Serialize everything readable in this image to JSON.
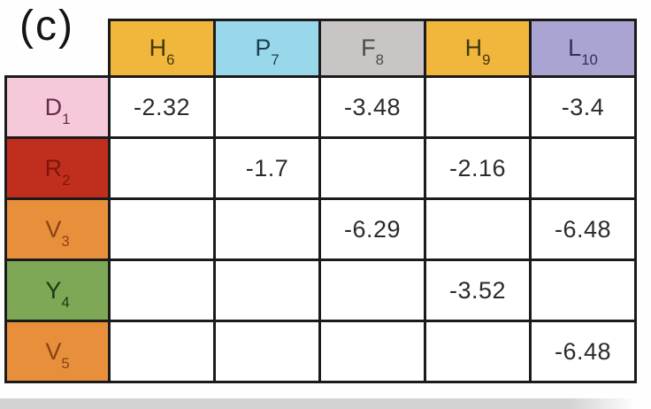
{
  "panel_label": "(c)",
  "palette": {
    "grid_border": "#1b1b1b",
    "value_text": "#2b2b2b",
    "gold": "#F1B73C",
    "gold_text": "#44380f",
    "cyan": "#98D8EA",
    "cyan_text": "#1d3d50",
    "gray": "#C9C5C5",
    "gray_text": "#4d4949",
    "lavender": "#A9A4D2",
    "lavender_text": "#322e5e",
    "pink": "#F5C9DA",
    "pink_text": "#69294b",
    "red": "#C02F1E",
    "red_text": "#801509",
    "orange": "#E88F3C",
    "orange_text": "#8a4313",
    "green": "#7EA855",
    "green_text": "#21380f"
  },
  "matrix": {
    "col_headers": [
      {
        "main": "H",
        "sub": "6"
      },
      {
        "main": "P",
        "sub": "7"
      },
      {
        "main": "F",
        "sub": "8"
      },
      {
        "main": "H",
        "sub": "9"
      },
      {
        "main": "L",
        "sub": "10"
      }
    ],
    "rows": [
      {
        "label": {
          "main": "D",
          "sub": "1"
        },
        "values": [
          "-2.32",
          "",
          "-3.48",
          "",
          "-3.4"
        ]
      },
      {
        "label": {
          "main": "R",
          "sub": "2"
        },
        "values": [
          "",
          "-1.7",
          "",
          "-2.16",
          ""
        ]
      },
      {
        "label": {
          "main": "V",
          "sub": "3"
        },
        "values": [
          "",
          "",
          "-6.29",
          "",
          "-6.48"
        ]
      },
      {
        "label": {
          "main": "Y",
          "sub": "4"
        },
        "values": [
          "",
          "",
          "",
          "-3.52",
          ""
        ]
      },
      {
        "label": {
          "main": "V",
          "sub": "5"
        },
        "values": [
          "",
          "",
          "",
          "",
          "-6.48"
        ]
      }
    ]
  },
  "chart_data": {
    "type": "table",
    "title": "(c)",
    "columns": [
      "H6",
      "P7",
      "F8",
      "H9",
      "L10"
    ],
    "rows": [
      "D1",
      "R2",
      "V3",
      "Y4",
      "V5"
    ],
    "values": [
      [
        -2.32,
        null,
        -3.48,
        null,
        -3.4
      ],
      [
        null,
        -1.7,
        null,
        -2.16,
        null
      ],
      [
        null,
        null,
        -6.29,
        null,
        -6.48
      ],
      [
        null,
        null,
        null,
        -3.52,
        null
      ],
      [
        null,
        null,
        null,
        null,
        -6.48
      ]
    ]
  }
}
